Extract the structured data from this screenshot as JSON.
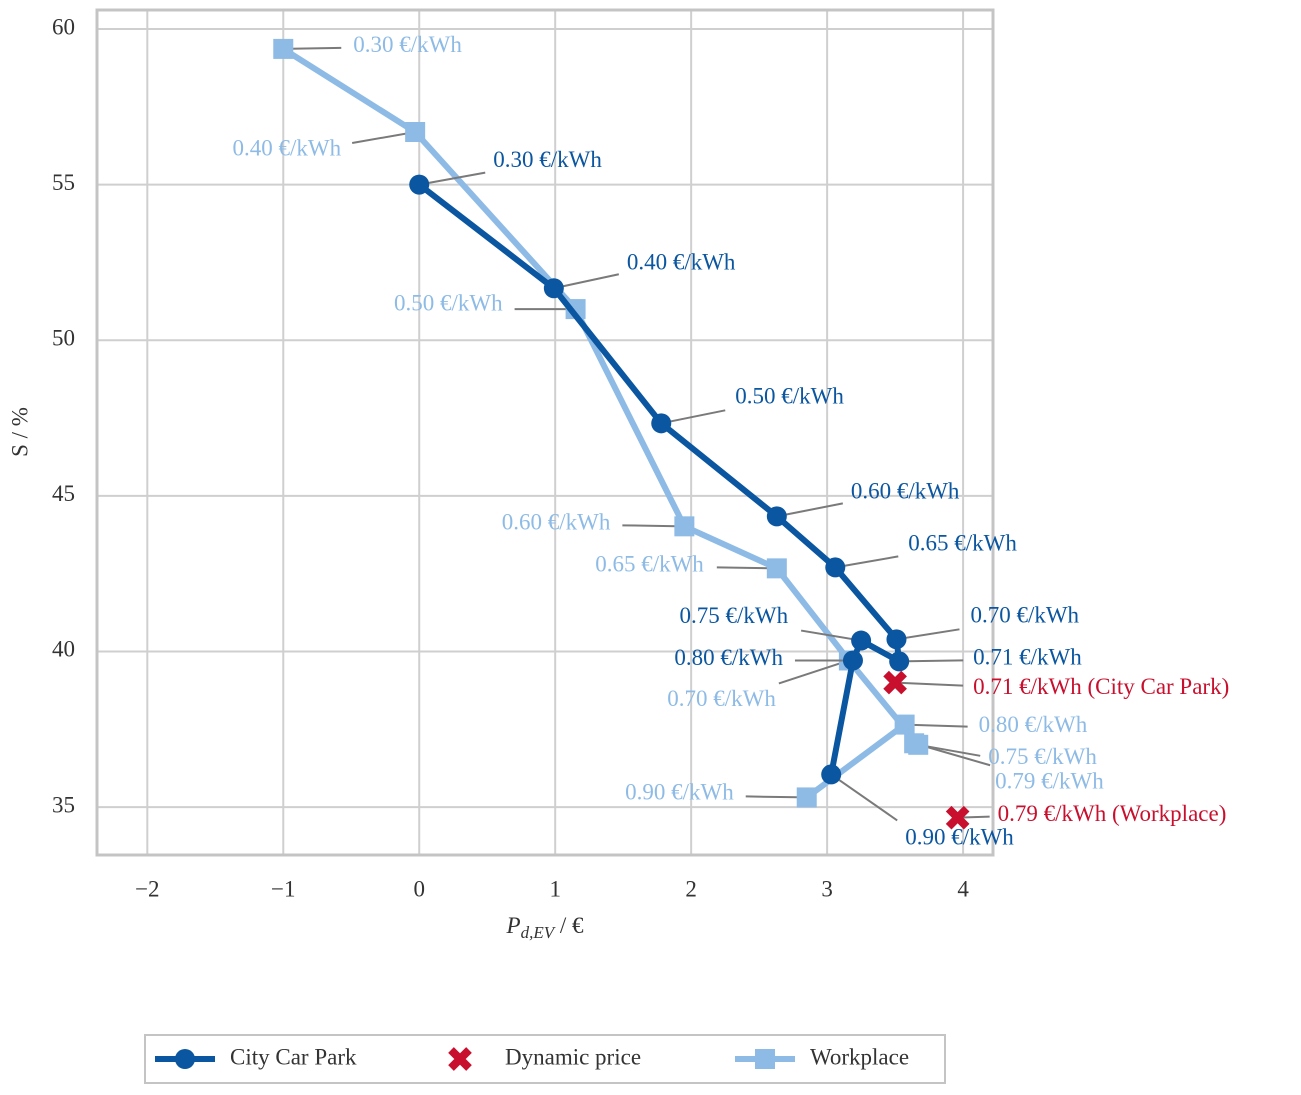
{
  "chart_data": {
    "type": "line",
    "xlabel_parts": [
      "P",
      "d,EV",
      " / €"
    ],
    "ylabel": "S / %",
    "xlim": [
      -2.37,
      4.22
    ],
    "ylim": [
      33.46,
      60.61
    ],
    "xticks": [
      {
        "value": -2,
        "label": "−2"
      },
      {
        "value": -1,
        "label": "−1"
      },
      0,
      1,
      2,
      3,
      4
    ],
    "yticks": [
      35,
      40,
      45,
      50,
      55,
      60
    ],
    "grid": true,
    "legend": "bottom",
    "series": [
      {
        "name": "City Car Park",
        "color": "#0b56a0",
        "marker": "circle",
        "x": [
          0,
          0.99,
          1.78,
          2.63,
          3.06,
          3.51,
          3.53,
          3.25,
          3.19,
          3.03
        ],
        "values": [
          55.0,
          51.67,
          47.33,
          44.34,
          42.7,
          40.39,
          39.68,
          40.35,
          39.71,
          36.05
        ],
        "labels": [
          "0.30 €/kWh",
          "0.40 €/kWh",
          "0.50 €/kWh",
          "0.60 €/kWh",
          "0.65 €/kWh",
          "0.70 €/kWh",
          "0.71 €/kWh",
          "0.75 €/kWh",
          "0.80 €/kWh",
          "0.90 €/kWh"
        ]
      },
      {
        "name": "Dynamic price",
        "color": "#c8102e",
        "marker": "x",
        "x": [
          3.5,
          3.96
        ],
        "values": [
          39.0,
          34.66
        ],
        "labels": [
          "0.71 €/kWh (City Car Park)",
          "0.79 €/kWh (Workplace)"
        ]
      },
      {
        "name": "Workplace",
        "color": "#8ebbe6",
        "marker": "square",
        "x": [
          -1.0,
          -0.03,
          1.15,
          1.95,
          2.63,
          3.16,
          3.67,
          3.64,
          3.57,
          2.85
        ],
        "values": [
          59.36,
          56.69,
          51.0,
          44.02,
          42.67,
          39.71,
          37.0,
          37.05,
          37.65,
          35.31
        ],
        "labels": [
          "0.30 €/kWh",
          "0.40 €/kWh",
          "0.50 €/kWh",
          "0.60 €/kWh",
          "0.65 €/kWh",
          "0.70 €/kWh",
          "0.75 €/kWh",
          "0.79 €/kWh",
          "0.80 €/kWh",
          "0.90 €/kWh"
        ]
      }
    ]
  }
}
